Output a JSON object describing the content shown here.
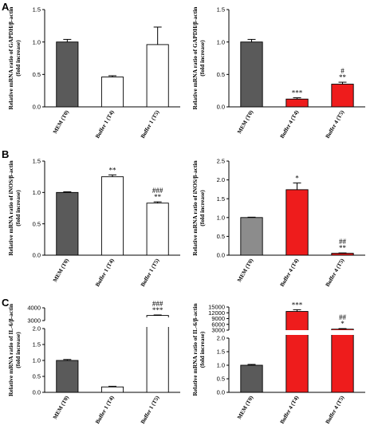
{
  "panel_letters": [
    "A",
    "B",
    "C"
  ],
  "colors": {
    "grey_dark": "#5a5a5a",
    "grey_mid": "#8c8c8c",
    "white": "#ffffff",
    "red": "#ee1c1c",
    "axis": "#000000"
  },
  "chart_data": [
    {
      "id": "A-left",
      "panel": "A",
      "type": "bar",
      "ylabel": [
        "Relative mRNA ratio of GAPDH/β-actin",
        "(fold increase)"
      ],
      "categories": [
        "MEM (T0)",
        "Buffer 1 (T4)",
        "Buffer 1 (T5)"
      ],
      "values": [
        1.0,
        0.46,
        0.96
      ],
      "errors": [
        0.04,
        0.02,
        0.27
      ],
      "fills": [
        "grey_dark",
        "white",
        "white"
      ],
      "annotations": [
        [],
        [],
        []
      ],
      "ylim": [
        0,
        1.5
      ],
      "yticks": [
        0.0,
        0.5,
        1.0,
        1.5
      ],
      "ytick_labels": [
        "0.0",
        "0.5",
        "1.0",
        "1.5"
      ]
    },
    {
      "id": "A-right",
      "panel": "A",
      "type": "bar",
      "ylabel": [
        "Relative mRNA ratio of GAPDH/β-actin",
        "(fold increase)"
      ],
      "categories": [
        "MEM (T0)",
        "Buffer 4 (T4)",
        "Buffer 4 (T5)"
      ],
      "values": [
        1.0,
        0.12,
        0.35
      ],
      "errors": [
        0.04,
        0.02,
        0.03
      ],
      "fills": [
        "grey_dark",
        "red",
        "red"
      ],
      "annotations": [
        [],
        [
          "***"
        ],
        [
          "#",
          "**"
        ]
      ],
      "ylim": [
        0,
        1.5
      ],
      "yticks": [
        0.0,
        0.5,
        1.0,
        1.5
      ],
      "ytick_labels": [
        "0.0",
        "0.5",
        "1.0",
        "1.5"
      ]
    },
    {
      "id": "B-left",
      "panel": "B",
      "type": "bar",
      "ylabel": [
        "Relative mRNA ratio of iNOS/β-actin",
        "(fold increase)"
      ],
      "categories": [
        "MEM (T0)",
        "Buffer 1 (T4)",
        "Buffer 1 (T5)"
      ],
      "values": [
        1.0,
        1.25,
        0.83
      ],
      "errors": [
        0.01,
        0.03,
        0.02
      ],
      "fills": [
        "grey_dark",
        "white",
        "white"
      ],
      "annotations": [
        [],
        [
          "**"
        ],
        [
          "###",
          "**"
        ]
      ],
      "ylim": [
        0,
        1.5
      ],
      "yticks": [
        0.0,
        0.5,
        1.0,
        1.5
      ],
      "ytick_labels": [
        "0.0",
        "0.5",
        "1.0",
        "1.5"
      ]
    },
    {
      "id": "B-right",
      "panel": "B",
      "type": "bar",
      "ylabel": [
        "Relative mRNA ratio of iNOS/β-actin",
        "(fold increase)"
      ],
      "categories": [
        "MEM (T0)",
        "Buffer 4 (T4)",
        "Buffer 4 (T5)"
      ],
      "values": [
        1.0,
        1.74,
        0.05
      ],
      "errors": [
        0.01,
        0.18,
        0.01
      ],
      "fills": [
        "grey_mid",
        "red",
        "red"
      ],
      "annotations": [
        [],
        [
          "*"
        ],
        [
          "##",
          "**"
        ]
      ],
      "ylim": [
        0,
        2.5
      ],
      "yticks": [
        0.0,
        0.5,
        1.0,
        1.5,
        2.0,
        2.5
      ],
      "ytick_labels": [
        "0.0",
        "0.5",
        "1.0",
        "1.5",
        "2.0",
        "2.5"
      ]
    },
    {
      "id": "C-left",
      "panel": "C",
      "type": "bar",
      "ylabel": [
        "Relative mRNA ratio of IL-6/β-actin",
        "(fold increase)"
      ],
      "categories": [
        "MEM (T0)",
        "Buffer 1 (T4)",
        "Buffer 1 (T5)"
      ],
      "values": [
        1.0,
        0.17,
        3400
      ],
      "errors": [
        0.03,
        0.02,
        40
      ],
      "fills": [
        "grey_dark",
        "white",
        "white"
      ],
      "annotations": [
        [],
        [],
        [
          "###",
          "***"
        ]
      ],
      "broken_axis": true,
      "lower_range": [
        0,
        2.0
      ],
      "upper_range": [
        3000,
        4000
      ],
      "yticks_lower": [
        0.0,
        0.5,
        1.0,
        1.5,
        2.0
      ],
      "ytick_labels_lower": [
        "0.0",
        "0.5",
        "1.0",
        "1.5",
        "2.0"
      ],
      "yticks_upper": [
        3000,
        4000
      ],
      "ytick_labels_upper": [
        "3000",
        "4000"
      ]
    },
    {
      "id": "C-right",
      "panel": "C",
      "type": "bar",
      "ylabel": [
        "Relative mRNA ratio of IL-6/β-actin",
        "(fold increase)"
      ],
      "categories": [
        "MEM (T0)",
        "Buffer 4 (T4)",
        "Buffer 4 (T5)"
      ],
      "values": [
        1.0,
        12700,
        3500
      ],
      "errors": [
        0.03,
        900,
        300
      ],
      "fills": [
        "grey_dark",
        "red",
        "red"
      ],
      "annotations": [
        [],
        [
          "***"
        ],
        [
          "##",
          "*"
        ]
      ],
      "broken_axis": true,
      "lower_range": [
        0,
        2.0
      ],
      "upper_range": [
        3000,
        15000
      ],
      "yticks_lower": [
        0.0,
        0.5,
        1.0,
        1.5,
        2.0
      ],
      "ytick_labels_lower": [
        "0.0",
        "0.5",
        "1.0",
        "1.5",
        "2.0"
      ],
      "yticks_upper": [
        3000,
        6000,
        9000,
        12000,
        15000
      ],
      "ytick_labels_upper": [
        "3000",
        "6000",
        "9000",
        "12000",
        "15000"
      ]
    }
  ]
}
